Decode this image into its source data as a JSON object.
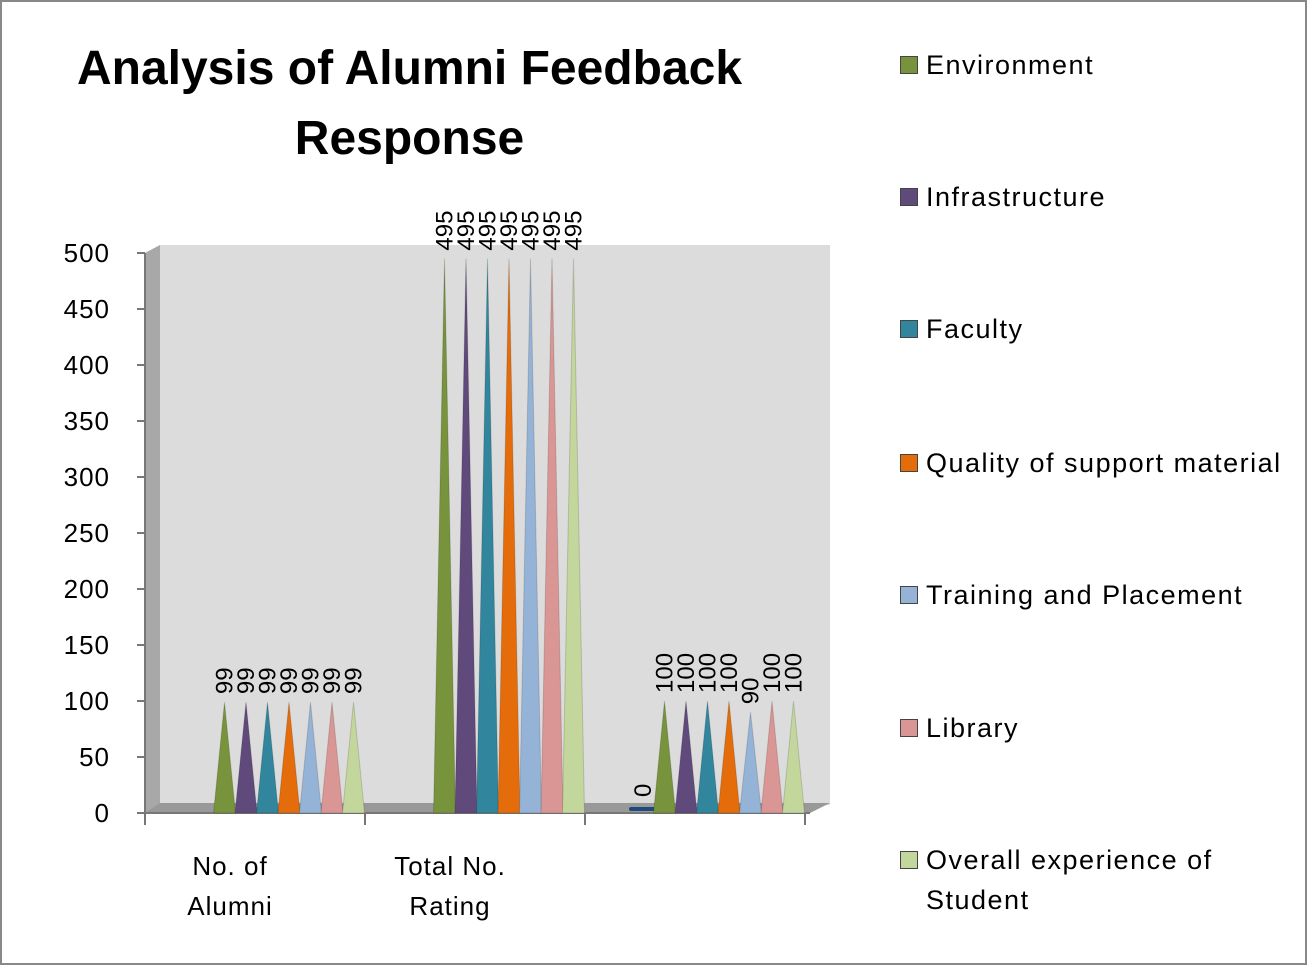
{
  "chart_data": {
    "type": "bar",
    "title": "Analysis of Alumni Feedback Response",
    "categories": [
      "No. of Alumni",
      "Total No. Rating",
      null
    ],
    "series": [
      {
        "color": "#1f497d",
        "values": [
          null,
          null,
          0
        ]
      },
      {
        "name": "Environment",
        "color": "#77933c",
        "values": [
          99,
          495,
          100
        ]
      },
      {
        "name": "Infrastructure",
        "color": "#604a7b",
        "values": [
          99,
          495,
          100
        ]
      },
      {
        "name": "Faculty",
        "color": "#31859c",
        "values": [
          99,
          495,
          100
        ]
      },
      {
        "name": "Quality of support material",
        "color": "#e46c0a",
        "values": [
          99,
          495,
          100
        ]
      },
      {
        "name": "Training and Placement",
        "color": "#95b3d7",
        "values": [
          99,
          495,
          90
        ]
      },
      {
        "name": "Library",
        "color": "#d99694",
        "values": [
          99,
          495,
          100
        ]
      },
      {
        "name": "Overall experience of Student",
        "color": "#c3d69b",
        "values": [
          99,
          495,
          100
        ]
      }
    ],
    "ylim": [
      0,
      500
    ],
    "yticks": [
      0,
      50,
      100,
      150,
      200,
      250,
      300,
      350,
      400,
      450,
      500
    ],
    "legend": "right"
  }
}
